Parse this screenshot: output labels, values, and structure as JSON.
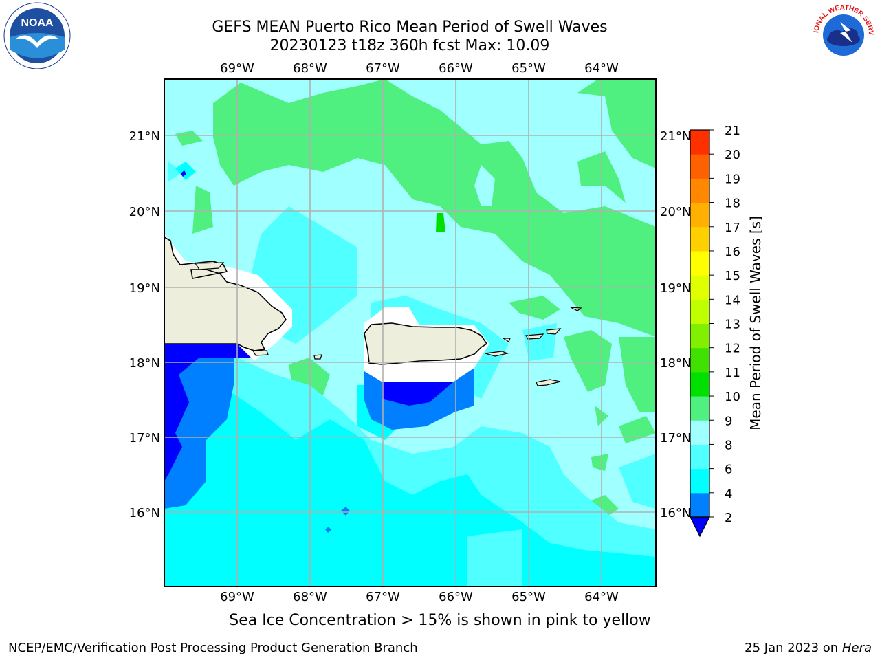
{
  "header": {
    "title_line1": "GEFS MEAN Puerto Rico Mean Period of Swell Waves",
    "title_line2": "20230123 t18z 360h fcst   Max: 10.09"
  },
  "map": {
    "lon_labels": [
      "69°W",
      "68°W",
      "67°W",
      "66°W",
      "65°W",
      "64°W"
    ],
    "lat_labels": [
      "21°N",
      "20°N",
      "19°N",
      "18°N",
      "17°N",
      "16°N"
    ]
  },
  "colorbar": {
    "label": "Mean Period of Swell Waves [s]",
    "ticks": [
      "21",
      "20",
      "19",
      "18",
      "17",
      "16",
      "15",
      "14",
      "13",
      "12",
      "11",
      "10",
      "9",
      "8",
      "6",
      "4",
      "2"
    ],
    "colors": [
      "#0000ff",
      "#0080ff",
      "#00ffff",
      "#50ffff",
      "#a0ffff",
      "#50f080",
      "#00e000",
      "#40e000",
      "#80f000",
      "#c0ff00",
      "#e0ff00",
      "#ffff00",
      "#ffd000",
      "#ffb000",
      "#ff8800",
      "#ff6000",
      "#ff3000",
      "#ff0000"
    ],
    "extend_color": "#0000ff"
  },
  "chart_data": {
    "type": "heatmap",
    "title": "GEFS MEAN Puerto Rico Mean Period of Swell Waves",
    "subtitle": "20230123 t18z 360h fcst   Max: 10.09",
    "variable_label": "Mean Period of Swell Waves [s]",
    "color_levels": [
      2,
      4,
      6,
      8,
      9,
      10,
      11,
      12,
      13,
      14,
      15,
      16,
      17,
      18,
      19,
      20,
      21
    ],
    "max": 10.09,
    "xlim": [
      "70°W",
      "63.3°W"
    ],
    "ylim": [
      "15°N",
      "21.7°N"
    ],
    "grid": true
  },
  "notes": {
    "sea_ice": "Sea Ice Concentration > 15% is shown in pink to yellow"
  },
  "footer": {
    "left": "NCEP/EMC/Verification Post Processing Product Generation Branch",
    "right_date": "25 Jan 2023 on ",
    "right_host": "Hera"
  },
  "logos": {
    "noaa": "NOAA",
    "nws_text": "NATIONAL WEATHER SERVICE"
  }
}
